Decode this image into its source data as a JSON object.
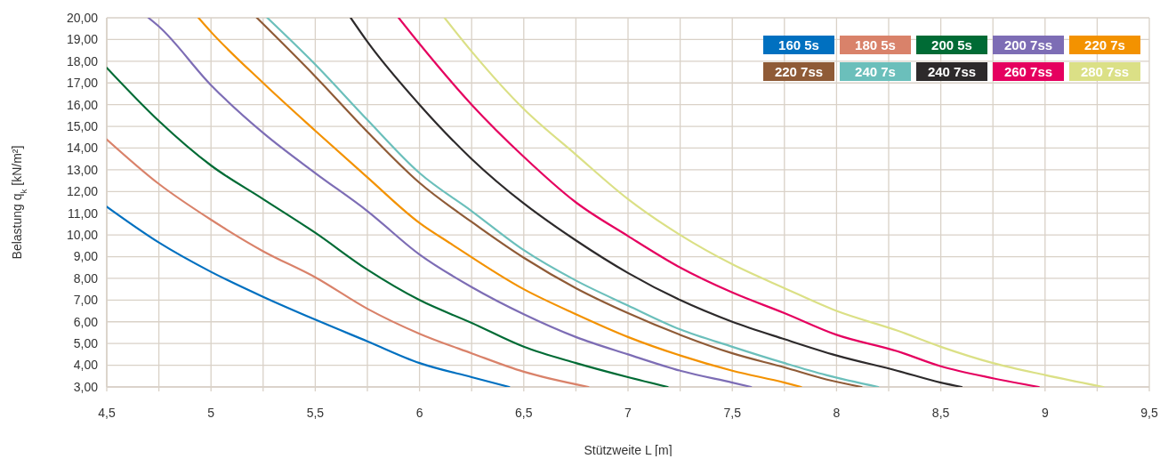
{
  "chart_data": {
    "type": "line",
    "xlabel": "Stützweite L [m]",
    "ylabel": "Belastung q$_{k}$ [kN/m²]",
    "xlim": [
      4.5,
      9.5
    ],
    "ylim": [
      3,
      20
    ],
    "xticks": [
      {
        "value": 4.5,
        "label": "4,5"
      },
      {
        "value": 4.75,
        "label": null
      },
      {
        "value": 5,
        "label": "5"
      },
      {
        "value": 5.25,
        "label": null
      },
      {
        "value": 5.5,
        "label": "5,5"
      },
      {
        "value": 5.75,
        "label": null
      },
      {
        "value": 6,
        "label": "6"
      },
      {
        "value": 6.25,
        "label": null
      },
      {
        "value": 6.5,
        "label": "6,5"
      },
      {
        "value": 6.75,
        "label": null
      },
      {
        "value": 7,
        "label": "7"
      },
      {
        "value": 7.25,
        "label": null
      },
      {
        "value": 7.5,
        "label": "7,5"
      },
      {
        "value": 7.75,
        "label": null
      },
      {
        "value": 8,
        "label": "8"
      },
      {
        "value": 8.25,
        "label": null
      },
      {
        "value": 8.5,
        "label": "8,5"
      },
      {
        "value": 8.75,
        "label": null
      },
      {
        "value": 9,
        "label": "9"
      },
      {
        "value": 9.25,
        "label": null
      },
      {
        "value": 9.5,
        "label": "9,5"
      }
    ],
    "yticks": [
      {
        "value": 3,
        "label": "3,00"
      },
      {
        "value": 4,
        "label": "4,00"
      },
      {
        "value": 5,
        "label": "5,00"
      },
      {
        "value": 6,
        "label": "6,00"
      },
      {
        "value": 7,
        "label": "7,00"
      },
      {
        "value": 8,
        "label": "8,00"
      },
      {
        "value": 9,
        "label": "9,00"
      },
      {
        "value": 10,
        "label": "10,00"
      },
      {
        "value": 11,
        "label": "11,00"
      },
      {
        "value": 12,
        "label": "12,00"
      },
      {
        "value": 13,
        "label": "13,00"
      },
      {
        "value": 14,
        "label": "14,00"
      },
      {
        "value": 15,
        "label": "15,00"
      },
      {
        "value": 16,
        "label": "16,00"
      },
      {
        "value": 17,
        "label": "17,00"
      },
      {
        "value": 18,
        "label": "18,00"
      },
      {
        "value": 19,
        "label": "19,00"
      },
      {
        "value": 20,
        "label": "20,00"
      }
    ],
    "grid": true,
    "legend": "top right",
    "marker": "none",
    "line_style": "solid",
    "series": [
      {
        "name": "160 5s",
        "color": "#0070c0",
        "x": [
          4.5,
          4.75,
          5,
          5.25,
          5.5,
          5.75,
          6,
          6.25,
          6.43
        ],
        "values": [
          11.3,
          9.65,
          8.3,
          7.15,
          6.1,
          5.1,
          4.1,
          3.45,
          3
        ]
      },
      {
        "name": "180 5s",
        "color": "#d9826a",
        "x": [
          4.5,
          4.75,
          5,
          5.25,
          5.5,
          5.75,
          6,
          6.25,
          6.5,
          6.81
        ],
        "values": [
          14.4,
          12.35,
          10.7,
          9.25,
          8.05,
          6.6,
          5.45,
          4.55,
          3.7,
          3
        ]
      },
      {
        "name": "200 5s",
        "color": "#006b35",
        "x": [
          4.5,
          4.75,
          5,
          5.25,
          5.5,
          5.75,
          6,
          6.25,
          6.5,
          6.75,
          7,
          7.19
        ],
        "values": [
          17.7,
          15.25,
          13.2,
          11.65,
          10.1,
          8.4,
          7,
          5.95,
          4.85,
          4.1,
          3.45,
          3
        ]
      },
      {
        "name": "200 7ss",
        "color": "#7d6db5",
        "x": [
          4.7,
          4.75,
          5,
          5.25,
          5.5,
          5.75,
          6,
          6.25,
          6.5,
          6.75,
          7,
          7.25,
          7.5,
          7.59
        ],
        "values": [
          20,
          19.6,
          16.9,
          14.7,
          12.85,
          11.1,
          9.1,
          7.6,
          6.35,
          5.3,
          4.5,
          3.75,
          3.2,
          3
        ]
      },
      {
        "name": "220 7s",
        "color": "#f39200",
        "x": [
          4.94,
          5,
          5.25,
          5.5,
          5.75,
          6,
          6.15,
          6.5,
          6.75,
          7,
          7.25,
          7.5,
          7.75,
          7.83
        ],
        "values": [
          20,
          19.35,
          17,
          14.8,
          12.65,
          10.55,
          9.6,
          7.5,
          6.35,
          5.3,
          4.45,
          3.75,
          3.2,
          3
        ]
      },
      {
        "name": "220 7ss",
        "color": "#8f5b37",
        "x": [
          5.22,
          5.5,
          5.75,
          6,
          6.25,
          6.5,
          6.75,
          7,
          7.25,
          7.5,
          7.75,
          7.95,
          8.12
        ],
        "values": [
          20,
          17.3,
          14.75,
          12.4,
          10.6,
          8.95,
          7.55,
          6.4,
          5.4,
          4.55,
          3.9,
          3.35,
          3
        ]
      },
      {
        "name": "240 7s",
        "color": "#6bbfbb",
        "x": [
          5.27,
          5.5,
          5.75,
          6,
          6.25,
          6.5,
          6.75,
          7,
          7.25,
          7.5,
          7.75,
          7.95,
          8.2
        ],
        "values": [
          20,
          17.85,
          15.3,
          12.85,
          11.1,
          9.3,
          7.9,
          6.75,
          5.65,
          4.85,
          4.1,
          3.55,
          3
        ]
      },
      {
        "name": "240 7ss",
        "color": "#2d2a2b",
        "x": [
          5.67,
          5.75,
          6,
          6.25,
          6.5,
          6.75,
          7,
          7.25,
          7.5,
          7.75,
          8,
          8.29,
          8.5,
          8.6
        ],
        "values": [
          20,
          18.9,
          16,
          13.5,
          11.45,
          9.75,
          8.25,
          7,
          6,
          5.2,
          4.45,
          3.75,
          3.2,
          3
        ]
      },
      {
        "name": "260 7ss",
        "color": "#e5005f",
        "x": [
          5.9,
          6,
          6.25,
          6.5,
          6.75,
          7,
          7.25,
          7.5,
          7.75,
          8,
          8.29,
          8.5,
          8.75,
          8.97
        ],
        "values": [
          20,
          18.8,
          16,
          13.6,
          11.5,
          9.95,
          8.5,
          7.35,
          6.4,
          5.4,
          4.65,
          3.95,
          3.4,
          3
        ]
      },
      {
        "name": "280 7ss",
        "color": "#dbe086",
        "x": [
          6.12,
          6.25,
          6.5,
          6.75,
          7,
          7.25,
          7.5,
          7.75,
          8,
          8.29,
          8.5,
          8.75,
          9,
          9.28
        ],
        "values": [
          20,
          18.45,
          15.8,
          13.7,
          11.65,
          10,
          8.65,
          7.55,
          6.5,
          5.6,
          4.85,
          4.1,
          3.55,
          3
        ]
      }
    ]
  }
}
